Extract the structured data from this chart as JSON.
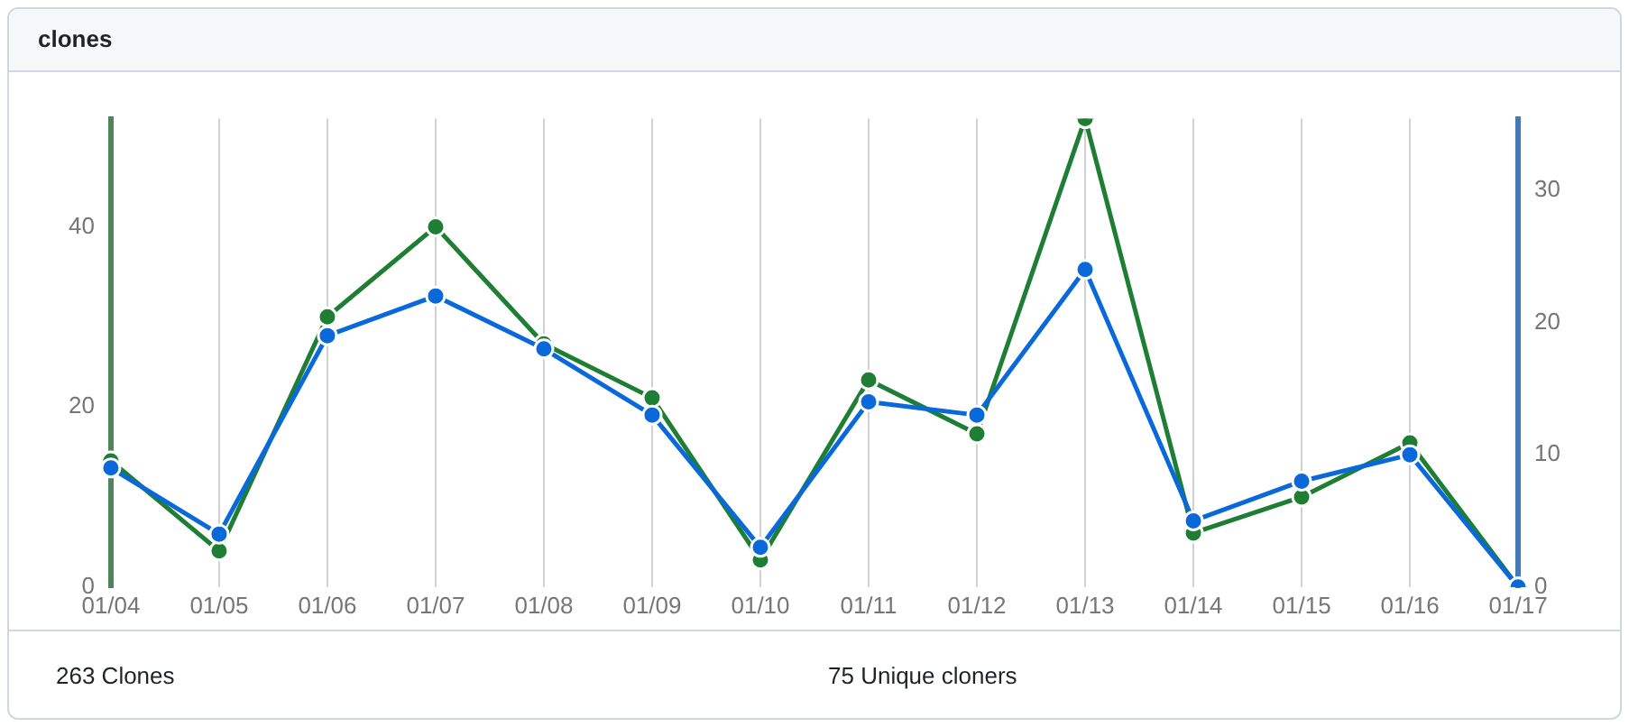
{
  "chart_data": {
    "type": "line",
    "title": "clones",
    "categories": [
      "01/04",
      "01/05",
      "01/06",
      "01/07",
      "01/08",
      "01/09",
      "01/10",
      "01/11",
      "01/12",
      "01/13",
      "01/14",
      "01/15",
      "01/16",
      "01/17"
    ],
    "series": [
      {
        "color": "#1e7e34",
        "axis": "y",
        "values": [
          14,
          4,
          30,
          40,
          27,
          21,
          3,
          23,
          17,
          52,
          6,
          10,
          16,
          0
        ]
      },
      {
        "color": "#0969da",
        "axis": "y2",
        "values": [
          9,
          4,
          19,
          22,
          18,
          13,
          3,
          14,
          13,
          24,
          5,
          8,
          10,
          0
        ]
      }
    ],
    "ylim": [
      0,
      52
    ],
    "yticks": [
      0,
      20,
      40
    ],
    "y2lim": [
      0,
      35.4
    ],
    "y2ticks": [
      0,
      10,
      20,
      30
    ],
    "grid": "x",
    "marker": "circle",
    "annotations": [
      "263 Clones",
      "75 Unique cloners"
    ]
  }
}
